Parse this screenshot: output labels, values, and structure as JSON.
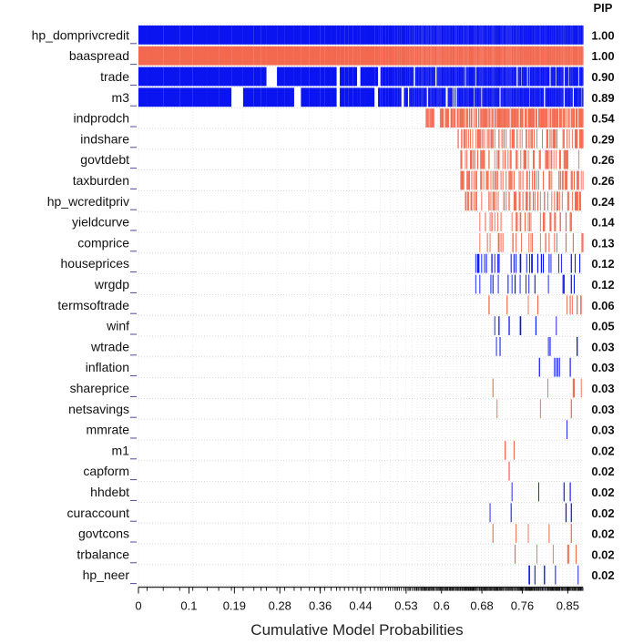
{
  "chart_data": {
    "type": "heatmap",
    "title": "",
    "xlabel": "Cumulative Model Probabilities",
    "pip_header": "PIP",
    "x_ticks": [
      "0",
      "0.1",
      "0.19",
      "0.28",
      "0.36",
      "0.44",
      "0.53",
      "0.6",
      "0.68",
      "0.76",
      "0.85"
    ],
    "x_tick_values": [
      0,
      0.1,
      0.19,
      0.28,
      0.36,
      0.44,
      0.53,
      0.6,
      0.68,
      0.76,
      0.85
    ],
    "xlim": [
      0,
      0.88
    ],
    "sign_colors": {
      "positive": "#0a14f0",
      "negative": "#f2694f"
    },
    "variables": [
      {
        "name": "hp_domprivcredit",
        "pip": "1.00",
        "sign": "positive"
      },
      {
        "name": "baaspread",
        "pip": "1.00",
        "sign": "negative"
      },
      {
        "name": "trade",
        "pip": "0.90",
        "sign": "positive"
      },
      {
        "name": "m3",
        "pip": "0.89",
        "sign": "positive"
      },
      {
        "name": "indprodch",
        "pip": "0.54",
        "sign": "negative"
      },
      {
        "name": "indshare",
        "pip": "0.29",
        "sign": "negative"
      },
      {
        "name": "govtdebt",
        "pip": "0.26",
        "sign": "negative"
      },
      {
        "name": "taxburden",
        "pip": "0.26",
        "sign": "negative"
      },
      {
        "name": "hp_wcreditpriv",
        "pip": "0.24",
        "sign": "negative"
      },
      {
        "name": "yieldcurve",
        "pip": "0.14",
        "sign": "negative"
      },
      {
        "name": "comprice",
        "pip": "0.13",
        "sign": "negative"
      },
      {
        "name": "houseprices",
        "pip": "0.12",
        "sign": "positive"
      },
      {
        "name": "wrgdp",
        "pip": "0.12",
        "sign": "positive"
      },
      {
        "name": "termsoftrade",
        "pip": "0.06",
        "sign": "negative"
      },
      {
        "name": "winf",
        "pip": "0.05",
        "sign": "positive"
      },
      {
        "name": "wtrade",
        "pip": "0.03",
        "sign": "positive"
      },
      {
        "name": "inflation",
        "pip": "0.03",
        "sign": "positive"
      },
      {
        "name": "shareprice",
        "pip": "0.03",
        "sign": "negative"
      },
      {
        "name": "netsavings",
        "pip": "0.03",
        "sign": "negative"
      },
      {
        "name": "mmrate",
        "pip": "0.03",
        "sign": "positive"
      },
      {
        "name": "m1",
        "pip": "0.02",
        "sign": "negative"
      },
      {
        "name": "capform",
        "pip": "0.02",
        "sign": "negative"
      },
      {
        "name": "hhdebt",
        "pip": "0.02",
        "sign": "positive"
      },
      {
        "name": "curaccount",
        "pip": "0.02",
        "sign": "positive"
      },
      {
        "name": "govtcons",
        "pip": "0.02",
        "sign": "negative"
      },
      {
        "name": "trbalance",
        "pip": "0.02",
        "sign": "negative"
      },
      {
        "name": "hp_neer",
        "pip": "0.02",
        "sign": "positive"
      }
    ]
  }
}
